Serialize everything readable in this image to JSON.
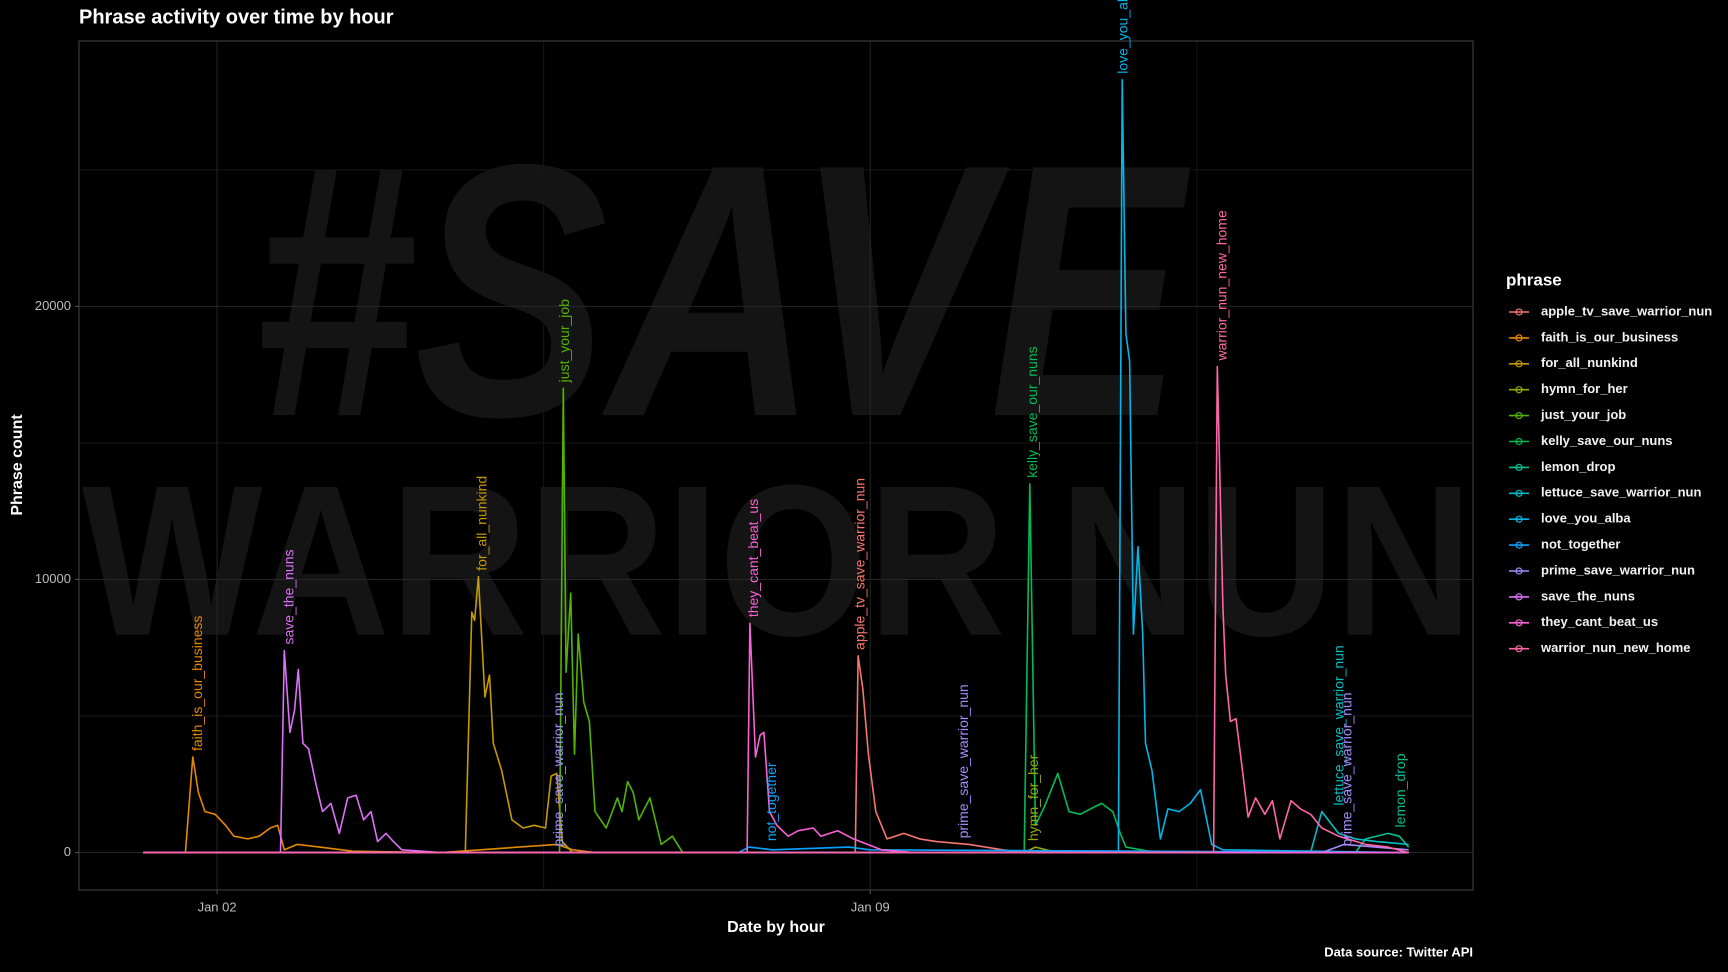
{
  "chart_data": {
    "type": "line",
    "title": "Phrase activity over time by hour",
    "x_label": "Date by hour",
    "y_label": "Phrase count",
    "caption": "Data source: Twitter API",
    "background_text": [
      "#SAVE",
      "WARRIOR NUN"
    ],
    "legend_title": "phrase",
    "legend_position": "right",
    "grid": true,
    "xlim": [
      0.52,
      15.46
    ],
    "xticks": [
      {
        "value": 2,
        "label": "Jan 02"
      },
      {
        "value": 9,
        "label": "Jan 09"
      }
    ],
    "ylim": [
      -1371,
      29718
    ],
    "yticks": [
      0,
      10000,
      20000
    ],
    "series": [
      {
        "name": "apple_tv_save_warrior_nun",
        "color": "#F8766D",
        "x": [
          1.21,
          8.84,
          8.87,
          8.92,
          8.98,
          9.06,
          9.18,
          9.36,
          9.53,
          9.71,
          10.06,
          10.42,
          10.65,
          14.77
        ],
        "values": [
          0,
          0,
          7200,
          6000,
          3600,
          1500,
          500,
          700,
          500,
          400,
          300,
          100,
          0,
          0
        ]
      },
      {
        "name": "faith_is_our_business",
        "color": "#E38900",
        "x": [
          1.21,
          1.66,
          1.74,
          1.8,
          1.87,
          1.98,
          2.09,
          2.18,
          2.33,
          2.45,
          2.57,
          2.65,
          2.72,
          2.86,
          3.1,
          3.45,
          4.4,
          5.64,
          5.81,
          6.05,
          14.77
        ],
        "values": [
          0,
          0,
          3500,
          2200,
          1500,
          1400,
          1000,
          600,
          500,
          600,
          900,
          1000,
          100,
          300,
          200,
          50,
          0,
          300,
          100,
          0,
          0
        ]
      },
      {
        "name": "for_all_nunkind",
        "color": "#C49A00",
        "x": [
          1.21,
          4.66,
          4.73,
          4.76,
          4.8,
          4.87,
          4.92,
          4.96,
          5.05,
          5.16,
          5.28,
          5.4,
          5.52,
          5.58,
          5.64,
          5.7,
          5.81,
          14.77
        ],
        "values": [
          0,
          0,
          8800,
          8500,
          10100,
          5700,
          6500,
          4000,
          3000,
          1200,
          900,
          1000,
          900,
          2800,
          2900,
          400,
          0,
          0
        ]
      },
      {
        "name": "hymn_for_her",
        "color": "#99A800",
        "x": [
          1.21,
          10.65,
          10.77,
          11.01,
          14.77
        ],
        "values": [
          0,
          0,
          200,
          0,
          0
        ]
      },
      {
        "name": "just_your_job",
        "color": "#53B400",
        "x": [
          1.21,
          5.67,
          5.71,
          5.74,
          5.79,
          5.83,
          5.87,
          5.93,
          5.99,
          6.05,
          6.17,
          6.29,
          6.34,
          6.4,
          6.46,
          6.52,
          6.64,
          6.76,
          6.88,
          6.99,
          14.77
        ],
        "values": [
          0,
          0,
          17000,
          6600,
          9500,
          3600,
          8000,
          5500,
          4800,
          1500,
          900,
          2000,
          1500,
          2600,
          2200,
          1200,
          2000,
          300,
          600,
          0,
          0
        ]
      },
      {
        "name": "kelly_save_our_nuns",
        "color": "#00BC56",
        "x": [
          1.21,
          10.65,
          10.71,
          10.77,
          10.87,
          11.01,
          11.13,
          11.25,
          11.36,
          11.48,
          11.6,
          11.68,
          11.74,
          12.07,
          14.77
        ],
        "values": [
          0,
          0,
          13500,
          1000,
          1700,
          2900,
          1500,
          1400,
          1600,
          1800,
          1500,
          700,
          200,
          0,
          0
        ]
      },
      {
        "name": "lemon_drop",
        "color": "#00C094",
        "x": [
          1.21,
          14.2,
          14.31,
          14.55,
          14.67,
          14.77
        ],
        "values": [
          0,
          0,
          500,
          700,
          600,
          200
        ]
      },
      {
        "name": "lettuce_save_warrior_nun",
        "color": "#00BFC4",
        "x": [
          1.21,
          13.72,
          13.84,
          14.02,
          14.2,
          14.43,
          14.77
        ],
        "values": [
          0,
          0,
          1500,
          700,
          500,
          400,
          300
        ]
      },
      {
        "name": "love_you_alba",
        "color": "#00B6EB",
        "x": [
          1.21,
          11.66,
          11.7,
          11.74,
          11.78,
          11.82,
          11.87,
          11.92,
          11.95,
          12.02,
          12.11,
          12.19,
          12.31,
          12.43,
          12.54,
          12.66,
          12.78,
          14.77
        ],
        "values": [
          0,
          0,
          28300,
          19000,
          18000,
          8000,
          11200,
          8000,
          4000,
          3000,
          500,
          1600,
          1500,
          1800,
          2300,
          300,
          100,
          0
        ]
      },
      {
        "name": "not_together",
        "color": "#06A4FF",
        "x": [
          1.21,
          7.59,
          7.7,
          7.95,
          8.77,
          9.0,
          14.77
        ],
        "values": [
          0,
          0,
          200,
          100,
          200,
          100,
          0
        ]
      },
      {
        "name": "prime_save_warrior_nun",
        "color": "#A58AFF",
        "x": [
          1.21,
          13.84,
          14.08,
          14.77
        ],
        "values": [
          0,
          0,
          300,
          100
        ]
      },
      {
        "name": "save_the_nuns",
        "color": "#DF70F8",
        "x": [
          1.21,
          2.68,
          2.72,
          2.78,
          2.83,
          2.87,
          2.92,
          2.98,
          3.06,
          3.13,
          3.22,
          3.31,
          3.4,
          3.49,
          3.57,
          3.65,
          3.72,
          3.81,
          3.89,
          3.98,
          4.4,
          14.77
        ],
        "values": [
          0,
          0,
          7400,
          4400,
          5200,
          6700,
          4000,
          3800,
          2500,
          1500,
          1800,
          700,
          2000,
          2100,
          1200,
          1500,
          400,
          700,
          400,
          100,
          0,
          0
        ]
      },
      {
        "name": "they_cant_beat_us",
        "color": "#FB61D7",
        "x": [
          1.21,
          7.68,
          7.71,
          7.77,
          7.82,
          7.86,
          7.92,
          8.0,
          8.12,
          8.23,
          8.39,
          8.47,
          8.65,
          8.82,
          9.12,
          9.47,
          14.77
        ],
        "values": [
          0,
          0,
          8400,
          3500,
          4300,
          4400,
          1500,
          1000,
          600,
          800,
          900,
          600,
          800,
          500,
          100,
          0,
          0
        ]
      },
      {
        "name": "warrior_nun_new_home",
        "color": "#FF66A8",
        "x": [
          1.21,
          12.68,
          12.72,
          12.78,
          12.81,
          12.86,
          12.92,
          12.99,
          13.05,
          13.13,
          13.23,
          13.31,
          13.39,
          13.51,
          13.61,
          13.72,
          13.84,
          14.02,
          14.31,
          14.55,
          14.77
        ],
        "values": [
          0,
          0,
          17800,
          9000,
          6500,
          4800,
          4900,
          3000,
          1300,
          2000,
          1400,
          1900,
          500,
          1900,
          1600,
          1400,
          900,
          600,
          300,
          200,
          0
        ]
      }
    ],
    "annotations": [
      {
        "text": "faith_is_our_business",
        "x": 1.8,
        "y": 3500,
        "color": "#E38900"
      },
      {
        "text": "save_the_nuns",
        "x": 2.78,
        "y": 7400,
        "color": "#DF70F8"
      },
      {
        "text": "for_all_nunkind",
        "x": 4.85,
        "y": 10100,
        "color": "#C49A00"
      },
      {
        "text": "just_your_job",
        "x": 5.73,
        "y": 17000,
        "color": "#53B400"
      },
      {
        "text": "prime_save_warrior_nun",
        "x": 5.67,
        "y": 0,
        "color": "#A58AFF"
      },
      {
        "text": "they_cant_beat_us",
        "x": 7.76,
        "y": 8400,
        "color": "#FB61D7"
      },
      {
        "text": "not_together",
        "x": 7.95,
        "y": 200,
        "color": "#06A4FF"
      },
      {
        "text": "apple_tv_save_warrior_nun",
        "x": 8.9,
        "y": 7200,
        "color": "#F8766D"
      },
      {
        "text": "prime_save_warrior_nun",
        "x": 10.01,
        "y": 300,
        "color": "#A58AFF"
      },
      {
        "text": "hymn_for_her",
        "x": 10.76,
        "y": 200,
        "color": "#99A800"
      },
      {
        "text": "kelly_save_our_nuns",
        "x": 10.75,
        "y": 13500,
        "color": "#00BC56"
      },
      {
        "text": "love_you_alba",
        "x": 11.72,
        "y": 28300,
        "color": "#00B6EB"
      },
      {
        "text": "warrior_nun_new_home",
        "x": 12.78,
        "y": 17800,
        "color": "#FF66A8"
      },
      {
        "text": "lettuce_save_warrior_nun",
        "x": 14.03,
        "y": 1500,
        "color": "#00BFC4"
      },
      {
        "text": "prime_save_warrior_nun",
        "x": 14.12,
        "y": 0,
        "color": "#A58AFF"
      },
      {
        "text": "lemon_drop",
        "x": 14.69,
        "y": 700,
        "color": "#00C094"
      }
    ]
  }
}
